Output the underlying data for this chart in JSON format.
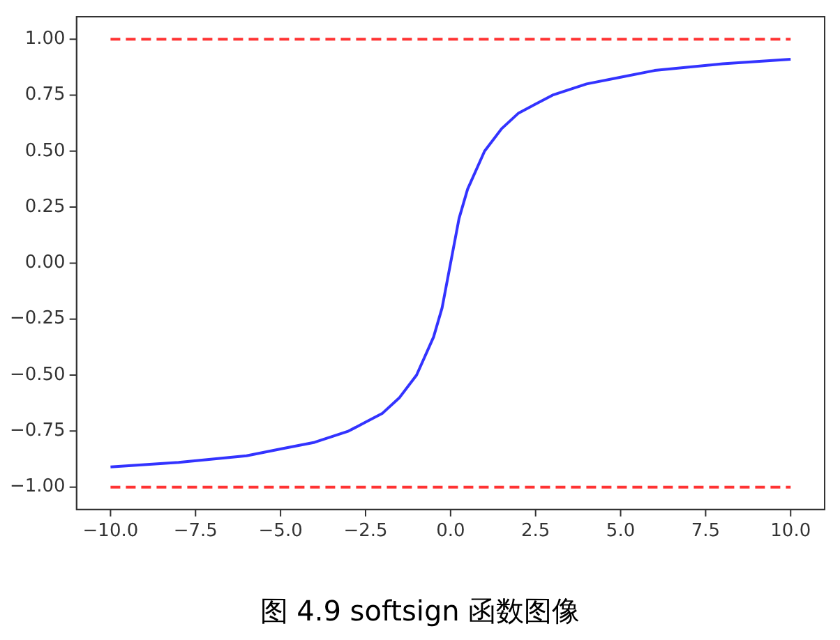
{
  "chart_data": {
    "type": "line",
    "annotations": [
      "图 4.9 softsign 函数图像"
    ],
    "xlim": [
      -11,
      11
    ],
    "ylim": [
      -1.1,
      1.1
    ],
    "xticks": [
      {
        "value": -10,
        "label": "−10.0"
      },
      {
        "value": -7.5,
        "label": "−7.5"
      },
      {
        "value": -5,
        "label": "−5.0"
      },
      {
        "value": -2.5,
        "label": "−2.5"
      },
      {
        "value": 0,
        "label": "0.0"
      },
      {
        "value": 2.5,
        "label": "2.5"
      },
      {
        "value": 5,
        "label": "5.0"
      },
      {
        "value": 7.5,
        "label": "7.5"
      },
      {
        "value": 10,
        "label": "10.0"
      }
    ],
    "yticks": [
      {
        "value": -1,
        "label": "−1.00"
      },
      {
        "value": -0.75,
        "label": "−0.75"
      },
      {
        "value": -0.5,
        "label": "−0.50"
      },
      {
        "value": -0.25,
        "label": "−0.25"
      },
      {
        "value": 0,
        "label": "0.00"
      },
      {
        "value": 0.25,
        "label": "0.25"
      },
      {
        "value": 0.5,
        "label": "0.50"
      },
      {
        "value": 0.75,
        "label": "0.75"
      },
      {
        "value": 1,
        "label": "1.00"
      }
    ],
    "grid": false,
    "legend": false,
    "marker": "none",
    "series": [
      {
        "color": "#3333ff",
        "line_style": "solid",
        "x": [
          -10,
          -8,
          -6,
          -5,
          -4,
          -3,
          -2.5,
          -2,
          -1.5,
          -1,
          -0.5,
          -0.25,
          0,
          0.25,
          0.5,
          1,
          1.5,
          2,
          2.5,
          3,
          4,
          5,
          6,
          8,
          10
        ],
        "values": [
          -0.91,
          -0.89,
          -0.86,
          -0.83,
          -0.8,
          -0.75,
          -0.71,
          -0.67,
          -0.6,
          -0.5,
          -0.33,
          -0.2,
          0,
          0.2,
          0.33,
          0.5,
          0.6,
          0.67,
          0.71,
          0.75,
          0.8,
          0.83,
          0.86,
          0.89,
          0.91
        ]
      },
      {
        "color": "#ff3333",
        "line_style": "dashed",
        "x": [
          -10,
          10
        ],
        "values": [
          1,
          1
        ]
      },
      {
        "color": "#ff3333",
        "line_style": "dashed",
        "x": [
          -10,
          10
        ],
        "values": [
          -1,
          -1
        ]
      }
    ]
  }
}
